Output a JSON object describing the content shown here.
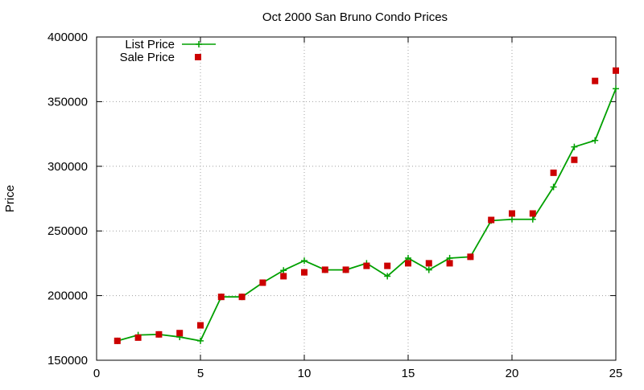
{
  "chart_data": {
    "type": "line",
    "title": "Oct 2000 San Bruno Condo Prices",
    "ylabel": "Price",
    "xlabel": "",
    "xlim": [
      0,
      25
    ],
    "ylim": [
      150000,
      400000
    ],
    "xticks": [
      0,
      5,
      10,
      15,
      20,
      25
    ],
    "yticks": [
      150000,
      200000,
      250000,
      300000,
      350000,
      400000
    ],
    "grid": true,
    "legend_position": "top-left",
    "series": [
      {
        "name": "List Price",
        "color": "#00a000",
        "style": "line-with-plus-markers",
        "x": [
          1,
          2,
          3,
          4,
          5,
          6,
          7,
          8,
          9,
          10,
          11,
          12,
          13,
          14,
          15,
          16,
          17,
          18,
          19,
          20,
          21,
          22,
          23,
          24,
          25
        ],
        "y": [
          165000,
          169500,
          170000,
          168000,
          165000,
          199000,
          199000,
          210000,
          219500,
          227000,
          219900,
          219900,
          225000,
          215000,
          229000,
          219900,
          229000,
          230000,
          258000,
          259000,
          259000,
          284000,
          315000,
          320000,
          360000
        ]
      },
      {
        "name": "Sale Price",
        "color": "#cc0000",
        "style": "square-markers",
        "x": [
          1,
          2,
          3,
          4,
          5,
          6,
          7,
          8,
          9,
          10,
          11,
          12,
          13,
          14,
          15,
          16,
          17,
          18,
          19,
          20,
          21,
          22,
          23,
          24,
          25
        ],
        "y": [
          165000,
          167500,
          170000,
          171000,
          177000,
          199000,
          199000,
          210000,
          215000,
          218000,
          220000,
          220000,
          223000,
          223000,
          225000,
          225000,
          225000,
          230000,
          258500,
          263500,
          263500,
          295000,
          305000,
          366000,
          374000
        ]
      }
    ]
  }
}
